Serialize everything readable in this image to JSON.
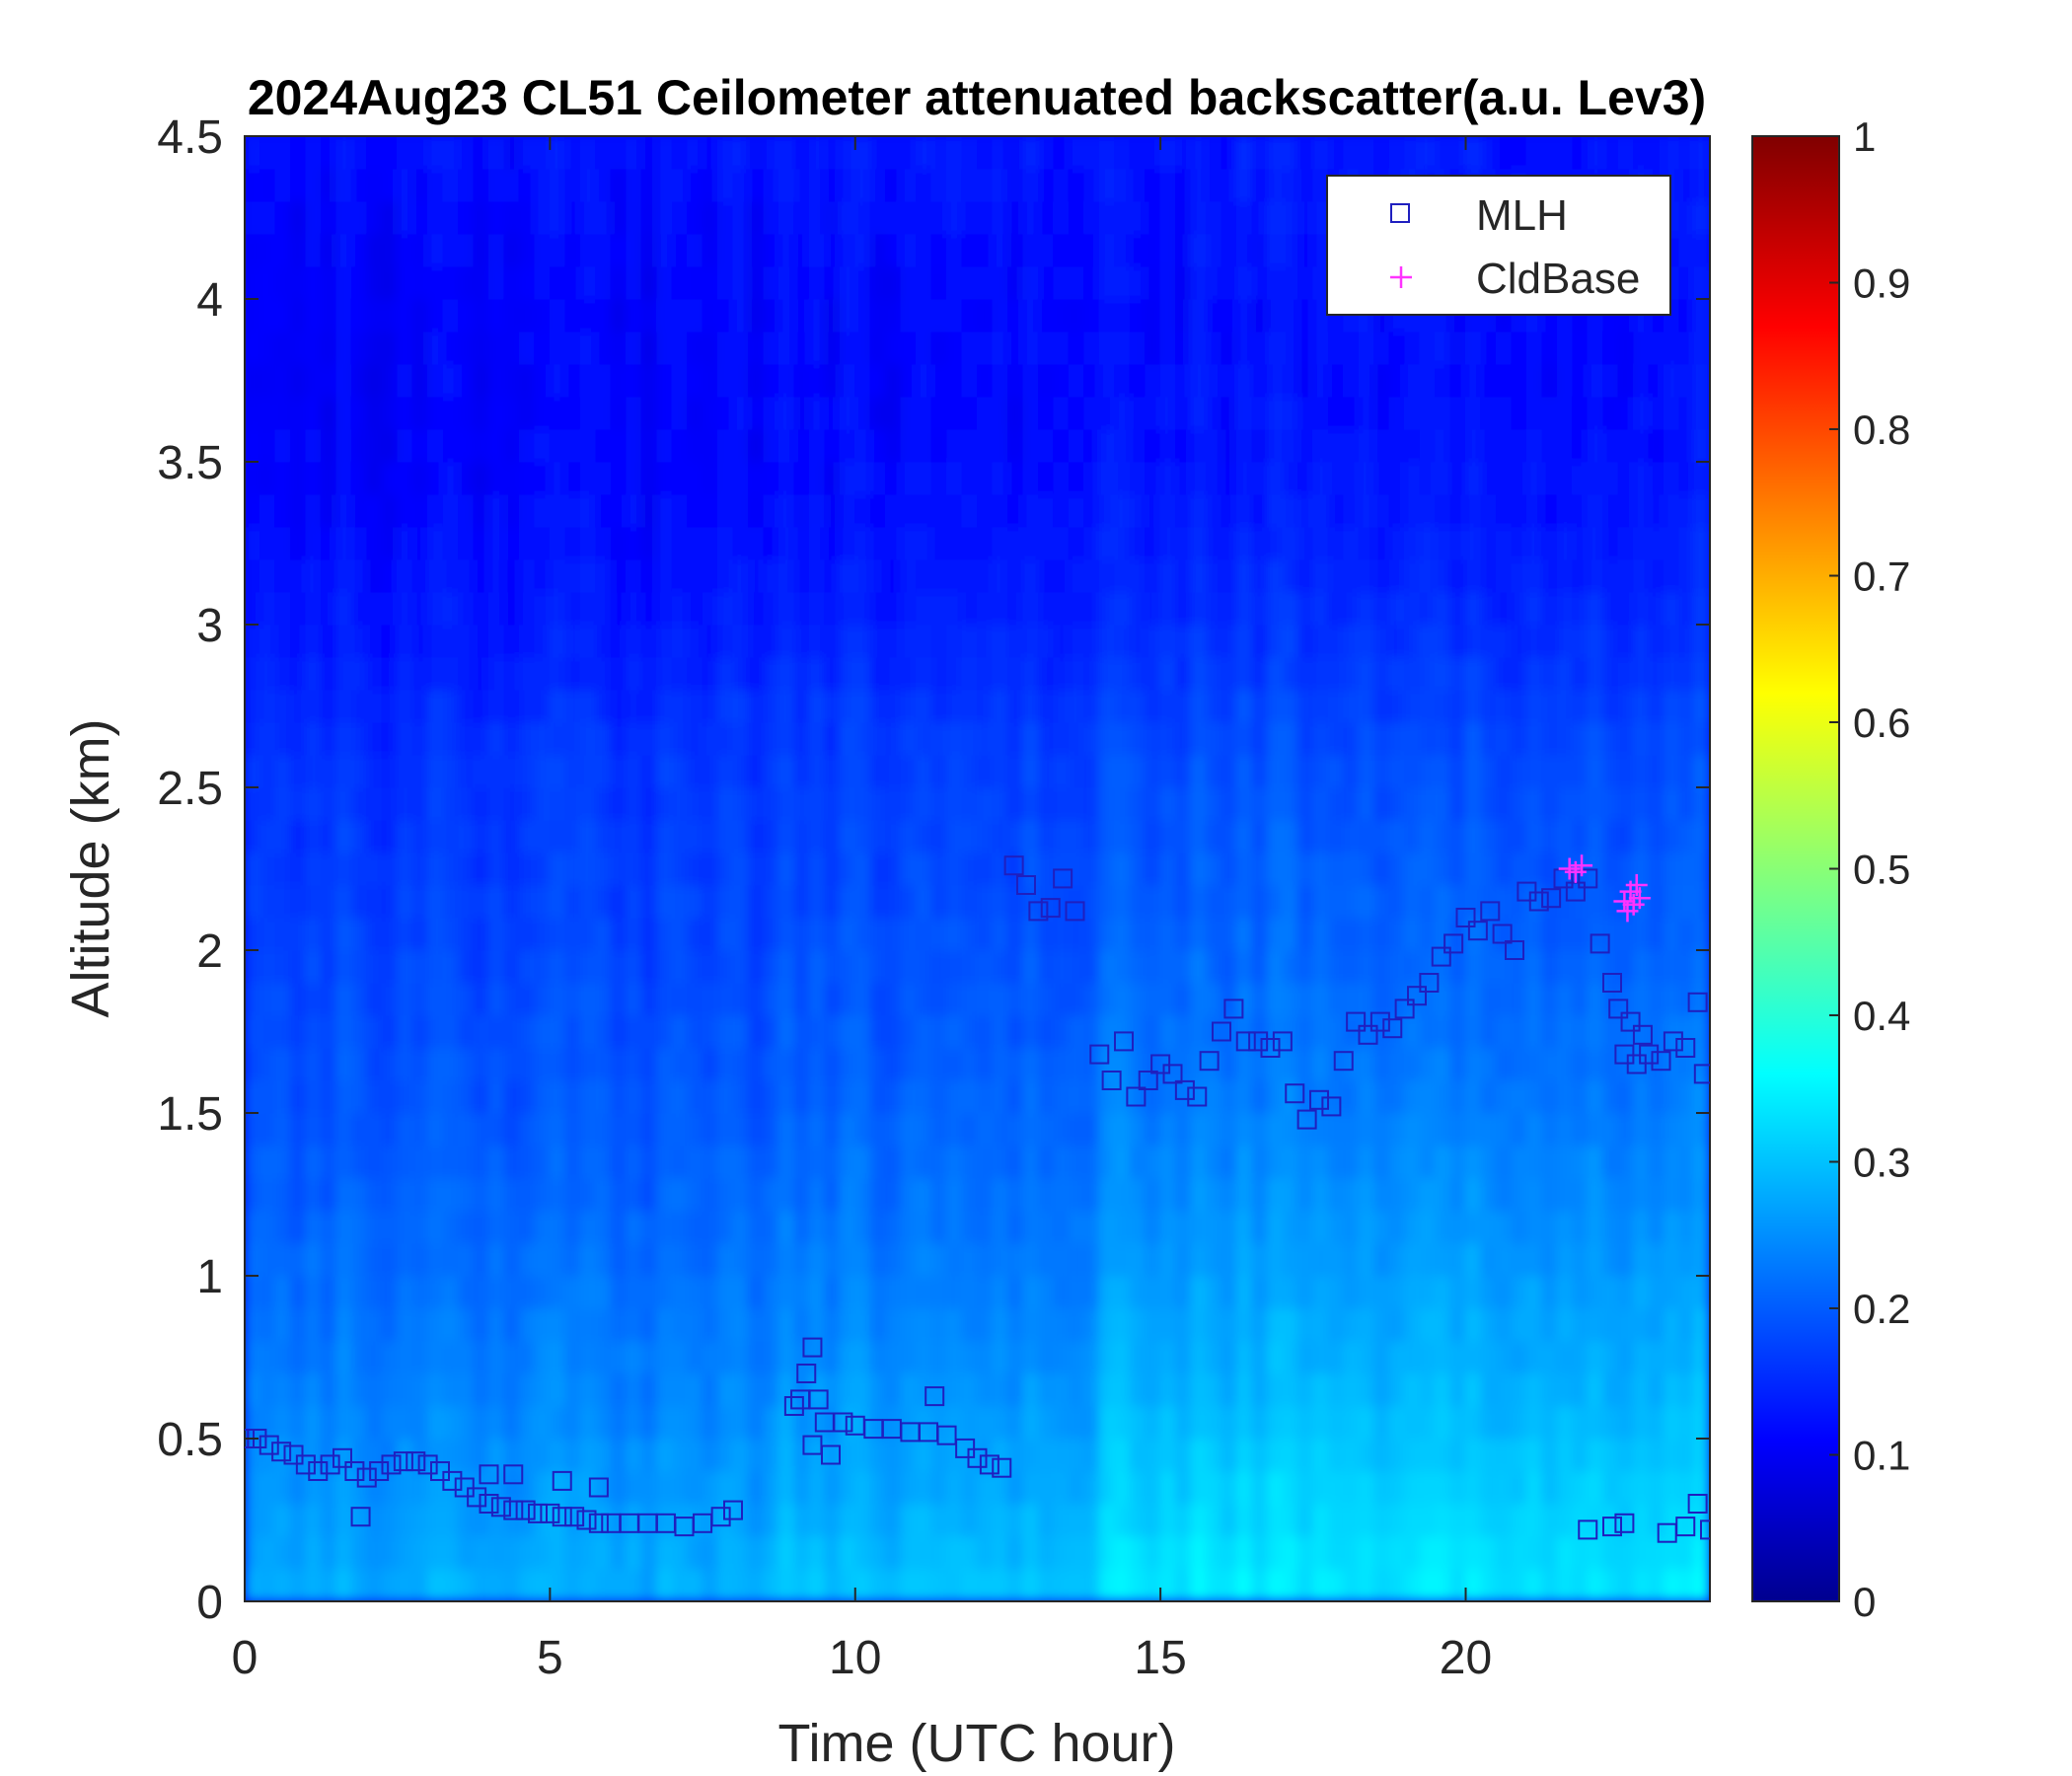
{
  "chart_data": {
    "type": "heatmap",
    "title": "2024Aug23 CL51 Ceilometer attenuated backscatter(a.u. Lev3)",
    "xlabel": "Time (UTC hour)",
    "ylabel": "Altitude (km)",
    "xlim": [
      0,
      24
    ],
    "ylim": [
      0,
      4.5
    ],
    "x_ticks": [
      "0",
      "5",
      "10",
      "15",
      "20"
    ],
    "x_tick_values": [
      0,
      5,
      10,
      15,
      20
    ],
    "y_ticks": [
      "0",
      "0.5",
      "1",
      "1.5",
      "2",
      "2.5",
      "3",
      "3.5",
      "4",
      "4.5"
    ],
    "y_tick_values": [
      0,
      0.5,
      1,
      1.5,
      2,
      2.5,
      3,
      3.5,
      4,
      4.5
    ],
    "colorbar": {
      "colormap": "jet",
      "range": [
        0,
        1
      ],
      "ticks": [
        "0",
        "0.1",
        "0.2",
        "0.3",
        "0.4",
        "0.5",
        "0.6",
        "0.7",
        "0.8",
        "0.9",
        "1"
      ],
      "tick_values": [
        0,
        0.1,
        0.2,
        0.3,
        0.4,
        0.5,
        0.6,
        0.7,
        0.8,
        0.9,
        1
      ]
    },
    "legend": {
      "placement": "top-right",
      "entries": [
        {
          "label": "MLH",
          "marker": "square",
          "color": "#1f1fbf"
        },
        {
          "label": "CldBase",
          "marker": "plus",
          "color": "#ff33ff"
        }
      ]
    },
    "series": [
      {
        "name": "MLH",
        "marker": "square",
        "color": "#1f1fbf",
        "x": [
          0,
          0.2,
          0.4,
          0.6,
          0.8,
          1.0,
          1.2,
          1.4,
          1.6,
          1.8,
          2.0,
          2.2,
          2.4,
          2.6,
          2.8,
          3.0,
          3.2,
          3.4,
          3.6,
          3.8,
          4.0,
          4.2,
          4.4,
          4.6,
          4.8,
          5.0,
          5.2,
          5.4,
          5.6,
          5.8,
          6.0,
          6.3,
          6.6,
          6.9,
          7.2,
          7.5,
          7.8,
          8.0,
          1.9,
          4.0,
          4.4,
          5.2,
          5.8,
          9.0,
          9.1,
          9.2,
          9.3,
          9.4,
          9.5,
          9.3,
          9.6,
          9.8,
          10.0,
          10.3,
          10.6,
          10.9,
          11.2,
          11.5,
          11.8,
          12.0,
          12.2,
          12.4,
          11.3,
          12.6,
          12.8,
          13.0,
          13.2,
          13.4,
          13.6,
          14.0,
          14.2,
          14.4,
          14.6,
          14.8,
          15.0,
          15.2,
          15.4,
          15.6,
          15.8,
          16.0,
          16.2,
          16.4,
          16.6,
          16.8,
          17.0,
          17.2,
          17.4,
          17.6,
          17.8,
          18.0,
          18.2,
          18.4,
          18.6,
          18.8,
          19.0,
          19.2,
          19.4,
          19.6,
          19.8,
          20.0,
          20.2,
          20.4,
          20.6,
          20.8,
          21.0,
          21.2,
          21.4,
          21.6,
          21.8,
          22.0,
          22.2,
          22.4,
          22.5,
          22.6,
          22.7,
          22.8,
          22.9,
          23.0,
          23.2,
          23.4,
          23.6,
          23.8,
          23.9,
          22.0,
          22.4,
          22.6,
          23.3,
          23.6,
          23.8,
          24.0
        ],
        "y": [
          0.5,
          0.5,
          0.48,
          0.46,
          0.45,
          0.42,
          0.4,
          0.42,
          0.44,
          0.4,
          0.38,
          0.4,
          0.42,
          0.43,
          0.43,
          0.42,
          0.4,
          0.37,
          0.35,
          0.32,
          0.3,
          0.29,
          0.28,
          0.28,
          0.27,
          0.27,
          0.26,
          0.26,
          0.25,
          0.24,
          0.24,
          0.24,
          0.24,
          0.24,
          0.23,
          0.24,
          0.26,
          0.28,
          0.26,
          0.39,
          0.39,
          0.37,
          0.35,
          0.6,
          0.62,
          0.7,
          0.78,
          0.62,
          0.55,
          0.48,
          0.45,
          0.55,
          0.54,
          0.53,
          0.53,
          0.52,
          0.52,
          0.51,
          0.47,
          0.44,
          0.42,
          0.41,
          0.63,
          2.26,
          2.2,
          2.12,
          2.13,
          2.22,
          2.12,
          1.68,
          1.6,
          1.72,
          1.55,
          1.6,
          1.65,
          1.62,
          1.57,
          1.55,
          1.66,
          1.75,
          1.82,
          1.72,
          1.72,
          1.7,
          1.72,
          1.56,
          1.48,
          1.54,
          1.52,
          1.66,
          1.78,
          1.74,
          1.78,
          1.76,
          1.82,
          1.86,
          1.9,
          1.98,
          2.02,
          2.1,
          2.06,
          2.12,
          2.05,
          2.0,
          2.18,
          2.15,
          2.16,
          2.22,
          2.18,
          2.22,
          2.02,
          1.9,
          1.82,
          1.68,
          1.78,
          1.65,
          1.74,
          1.68,
          1.66,
          1.72,
          1.7,
          1.84,
          1.62,
          0.22,
          0.23,
          0.24,
          0.21,
          0.23,
          0.3,
          0.22
        ]
      },
      {
        "name": "CldBase",
        "marker": "plus",
        "color": "#ff33ff",
        "x": [
          21.7,
          21.8,
          21.9,
          22.6,
          22.65,
          22.7,
          22.75,
          22.8,
          22.85
        ],
        "y": [
          2.25,
          2.24,
          2.26,
          2.15,
          2.12,
          2.18,
          2.14,
          2.2,
          2.16
        ]
      }
    ],
    "field_description": {
      "background_level": 0.12,
      "column_profiles": [
        {
          "x_range": [
            0,
            8.7
          ],
          "surface": 0.3,
          "top": 0.12,
          "decay_km": 2.2
        },
        {
          "x_range": [
            8.7,
            14.1
          ],
          "surface": 0.32,
          "top": 0.12,
          "decay_km": 2.4
        },
        {
          "x_range": [
            14.1,
            24
          ],
          "surface": 0.36,
          "top": 0.1,
          "decay_km": 2.8
        }
      ]
    }
  }
}
